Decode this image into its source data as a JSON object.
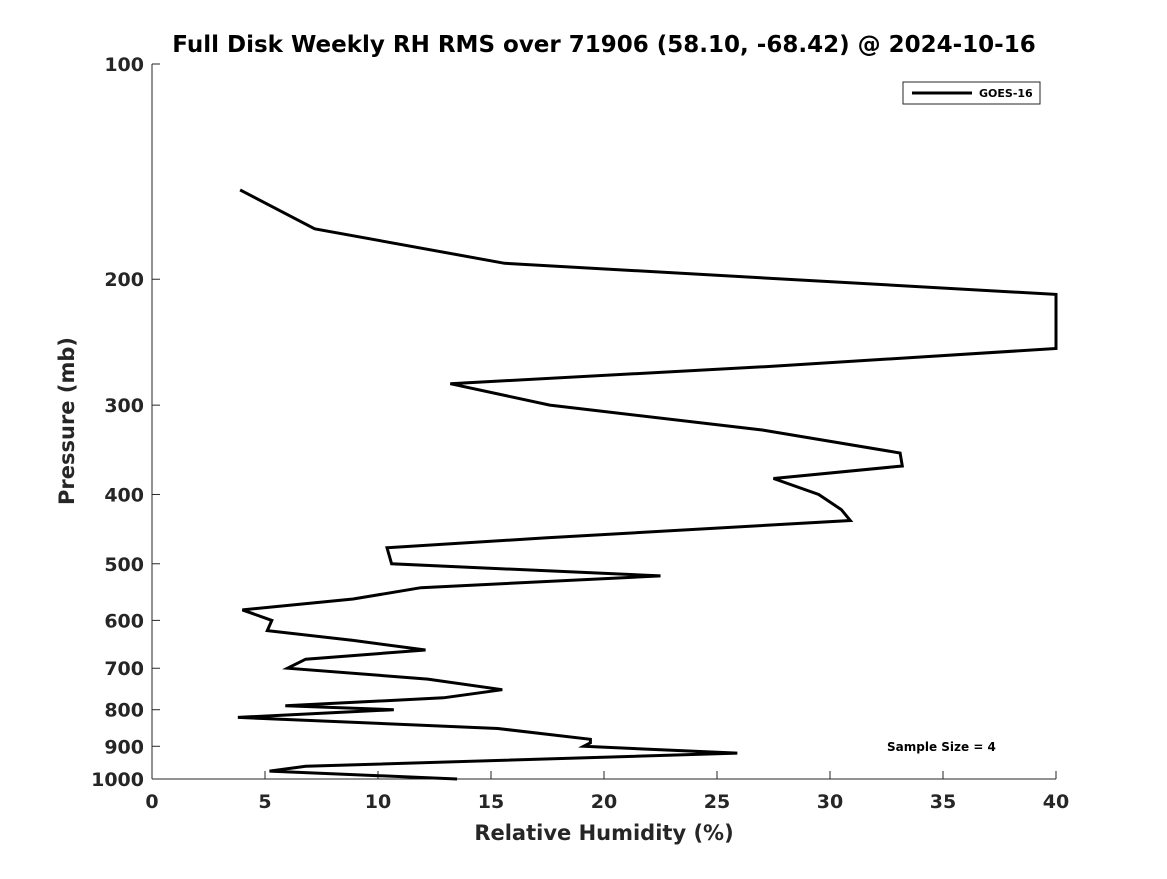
{
  "chart_data": {
    "type": "line",
    "title": "Full Disk Weekly RH RMS over 71906 (58.10, -68.42) @ 2024-10-16",
    "xlabel": "Relative Humidity (%)",
    "ylabel": "Pressure (mb)",
    "xlim": [
      0,
      40
    ],
    "ylim": [
      100,
      1000
    ],
    "yscale": "log",
    "y_reversed": true,
    "xticks": [
      0,
      5,
      10,
      15,
      20,
      25,
      30,
      35,
      40
    ],
    "yticks": [
      100,
      200,
      300,
      400,
      500,
      600,
      700,
      800,
      900,
      1000
    ],
    "grid": false,
    "legend": {
      "location": "top-right",
      "entries": [
        "GOES-16"
      ]
    },
    "annotation": "Sample Size = 4",
    "series": [
      {
        "name": "GOES-16",
        "color": "#000000",
        "points": [
          [
            3.9,
            150
          ],
          [
            7.2,
            170
          ],
          [
            15.6,
            190
          ],
          [
            40.0,
            210
          ],
          [
            40.0,
            250
          ],
          [
            27.2,
            265
          ],
          [
            13.2,
            280
          ],
          [
            17.6,
            300
          ],
          [
            27.0,
            325
          ],
          [
            33.1,
            350
          ],
          [
            33.2,
            365
          ],
          [
            27.5,
            380
          ],
          [
            29.5,
            400
          ],
          [
            30.5,
            420
          ],
          [
            30.9,
            435
          ],
          [
            17.4,
            460
          ],
          [
            10.4,
            475
          ],
          [
            10.6,
            500
          ],
          [
            22.5,
            520
          ],
          [
            11.9,
            540
          ],
          [
            8.9,
            560
          ],
          [
            4.0,
            580
          ],
          [
            5.3,
            600
          ],
          [
            5.1,
            620
          ],
          [
            8.9,
            640
          ],
          [
            12.1,
            660
          ],
          [
            6.8,
            680
          ],
          [
            6.0,
            700
          ],
          [
            12.2,
            725
          ],
          [
            15.5,
            750
          ],
          [
            12.9,
            770
          ],
          [
            5.9,
            790
          ],
          [
            10.7,
            800
          ],
          [
            3.8,
            820
          ],
          [
            15.3,
            850
          ],
          [
            19.4,
            880
          ],
          [
            19.4,
            890
          ],
          [
            19.1,
            900
          ],
          [
            25.9,
            920
          ],
          [
            6.8,
            960
          ],
          [
            5.2,
            975
          ],
          [
            13.5,
            1000
          ]
        ]
      }
    ]
  }
}
